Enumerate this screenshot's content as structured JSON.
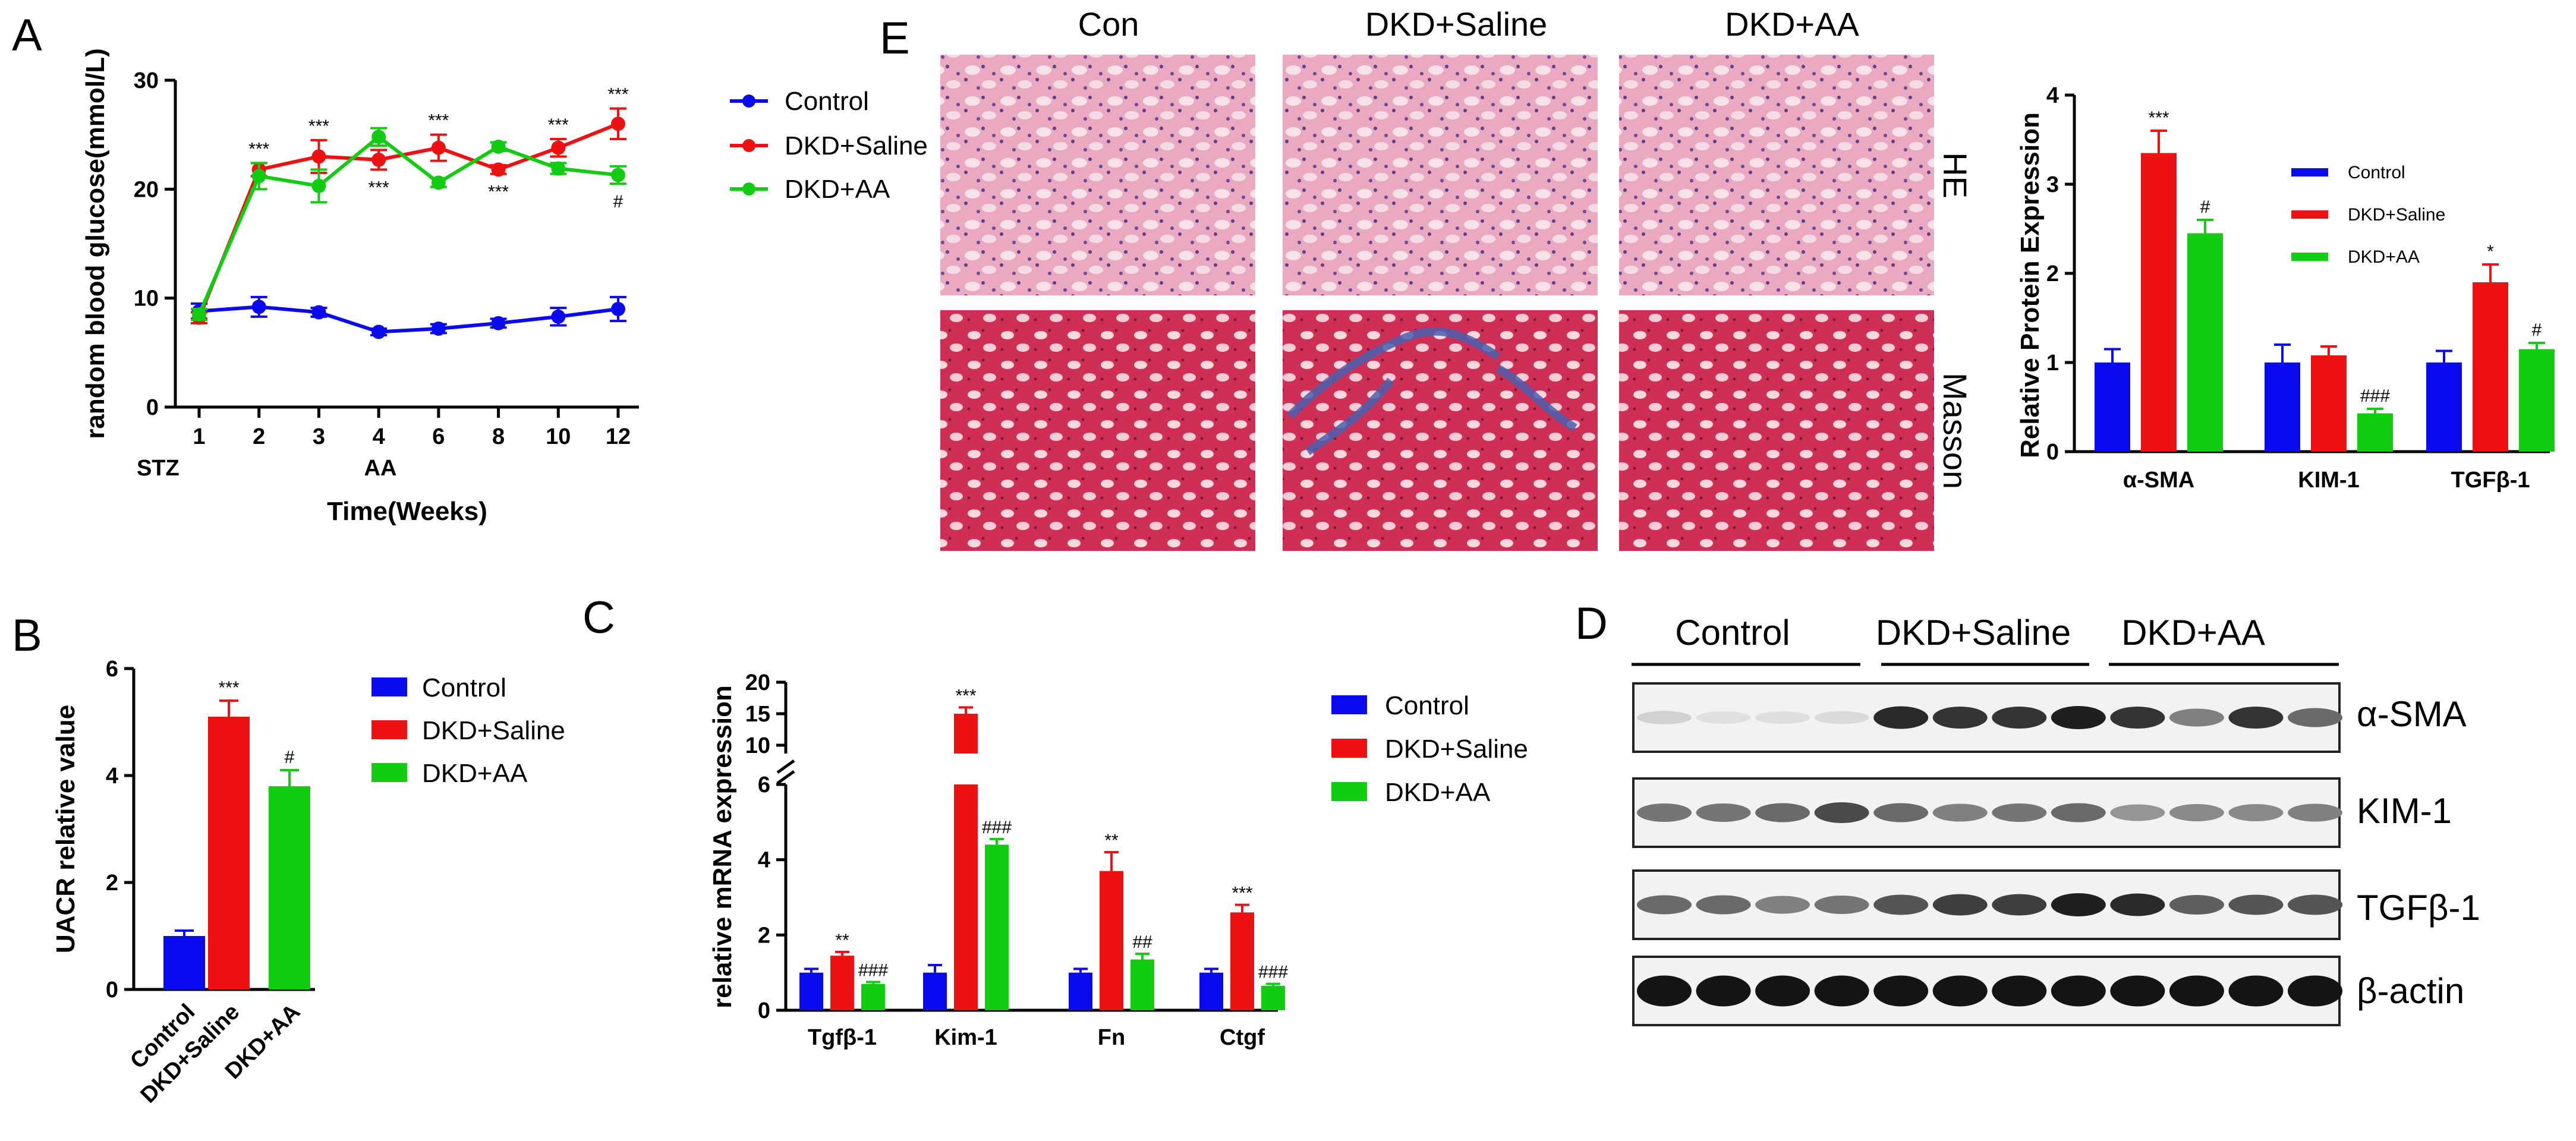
{
  "colors": {
    "control": "#0a0af0",
    "saline": "#ee1111",
    "aa": "#11cc11"
  },
  "panels": {
    "A": "A",
    "B": "B",
    "C": "C",
    "D": "D",
    "E": "E"
  },
  "chart_data": [
    {
      "id": "A",
      "type": "line",
      "ylabel": "random blood glucose(mmol/L)",
      "xlabel": "Time(Weeks)",
      "categories": [
        "1",
        "2",
        "3",
        "4",
        "6",
        "8",
        "10",
        "12"
      ],
      "ylim": [
        0,
        30
      ],
      "yticks": [
        0,
        10,
        20,
        30
      ],
      "annotations_below": [
        "STZ",
        "AA"
      ],
      "series": [
        {
          "name": "Control",
          "color": "#0a0af0",
          "values": [
            8.8,
            9.2,
            8.7,
            6.9,
            7.2,
            7.7,
            8.3,
            9.0
          ],
          "err": [
            0.7,
            0.9,
            0.4,
            0.3,
            0.4,
            0.4,
            0.8,
            1.1
          ]
        },
        {
          "name": "DKD+Saline",
          "color": "#ee1111",
          "values": [
            8.2,
            21.8,
            23.0,
            22.7,
            23.8,
            21.8,
            23.8,
            26.0
          ],
          "err": [
            0.5,
            0.6,
            1.5,
            0.9,
            1.2,
            0.4,
            0.8,
            1.4
          ]
        },
        {
          "name": "DKD+AA",
          "color": "#11cc11",
          "values": [
            8.5,
            21.2,
            20.3,
            24.8,
            20.6,
            23.9,
            21.9,
            21.3
          ],
          "err": [
            0.5,
            1.2,
            1.5,
            0.8,
            0.4,
            0.4,
            0.5,
            0.8
          ]
        }
      ],
      "sig_above": [
        "",
        "***",
        "***",
        "",
        "***",
        "",
        "***",
        "***"
      ],
      "sig_below": [
        "",
        "",
        "",
        "***",
        "",
        "***",
        "",
        "#"
      ]
    },
    {
      "id": "B",
      "type": "bar",
      "ylabel": "UACR relative value",
      "categories": [
        "Control",
        "DKD+Saline",
        "DKD+AA"
      ],
      "values": [
        1.0,
        5.1,
        3.8
      ],
      "err": [
        0.1,
        0.3,
        0.3
      ],
      "sig": [
        "",
        "***",
        "#"
      ],
      "ylim": [
        0,
        6
      ],
      "yticks": [
        0,
        2,
        4,
        6
      ],
      "legend": [
        "Control",
        "DKD+Saline",
        "DKD+AA"
      ]
    },
    {
      "id": "C",
      "type": "bar",
      "ylabel": "relative mRNA expression",
      "categories": [
        "Tgfβ-1",
        "Kim-1",
        "Fn",
        "Ctgf"
      ],
      "yticks_low": [
        0,
        2,
        4,
        6
      ],
      "yticks_high": [
        10,
        15,
        20
      ],
      "axis_break": [
        6,
        10
      ],
      "series": [
        {
          "name": "Control",
          "values": [
            1.0,
            1.0,
            1.0,
            1.0
          ],
          "err": [
            0.1,
            0.2,
            0.1,
            0.1
          ],
          "sig": [
            "",
            "",
            "",
            ""
          ]
        },
        {
          "name": "DKD+Saline",
          "values": [
            1.45,
            15.0,
            3.7,
            2.6
          ],
          "err": [
            0.1,
            1.0,
            0.5,
            0.2
          ],
          "sig": [
            "**",
            "***",
            "**",
            "***"
          ]
        },
        {
          "name": "DKD+AA",
          "values": [
            0.7,
            4.4,
            1.35,
            0.65
          ],
          "err": [
            0.05,
            0.15,
            0.15,
            0.05
          ],
          "sig": [
            "###",
            "###",
            "##",
            "###"
          ]
        }
      ]
    },
    {
      "id": "E-chart",
      "type": "bar",
      "ylabel": "Relative Protein Expression",
      "categories": [
        "α-SMA",
        "KIM-1",
        "TGFβ-1"
      ],
      "ylim": [
        0,
        4
      ],
      "yticks": [
        0,
        1,
        2,
        3,
        4
      ],
      "series": [
        {
          "name": "Control",
          "values": [
            1.0,
            1.0,
            1.0
          ],
          "err": [
            0.15,
            0.2,
            0.13
          ],
          "sig": [
            "",
            "",
            ""
          ]
        },
        {
          "name": "DKD+Saline",
          "values": [
            3.35,
            1.08,
            1.9
          ],
          "err": [
            0.25,
            0.1,
            0.2
          ],
          "sig": [
            "***",
            "",
            "*"
          ]
        },
        {
          "name": "DKD+AA",
          "values": [
            2.45,
            0.43,
            1.15
          ],
          "err": [
            0.15,
            0.05,
            0.07
          ],
          "sig": [
            "#",
            "###",
            "#"
          ]
        }
      ]
    }
  ],
  "histology": {
    "columns": [
      "Con",
      "DKD+Saline",
      "DKD+AA"
    ],
    "rows": [
      "HE",
      "Masson"
    ]
  },
  "western": {
    "groups": [
      "Control",
      "DKD+Saline",
      "DKD+AA"
    ],
    "bands": [
      "α-SMA",
      "KIM-1",
      "TGFβ-1",
      "β-actin"
    ],
    "intensity": [
      [
        0.12,
        0.05,
        0.06,
        0.08,
        0.9,
        0.85,
        0.85,
        0.95,
        0.85,
        0.5,
        0.85,
        0.6
      ],
      [
        0.55,
        0.55,
        0.6,
        0.75,
        0.6,
        0.5,
        0.55,
        0.6,
        0.4,
        0.45,
        0.45,
        0.5
      ],
      [
        0.6,
        0.6,
        0.5,
        0.55,
        0.7,
        0.8,
        0.8,
        0.95,
        0.9,
        0.65,
        0.7,
        0.7
      ],
      [
        1.0,
        1.0,
        1.0,
        1.0,
        1.0,
        1.0,
        1.0,
        1.0,
        1.0,
        1.0,
        1.0,
        1.0
      ]
    ]
  }
}
